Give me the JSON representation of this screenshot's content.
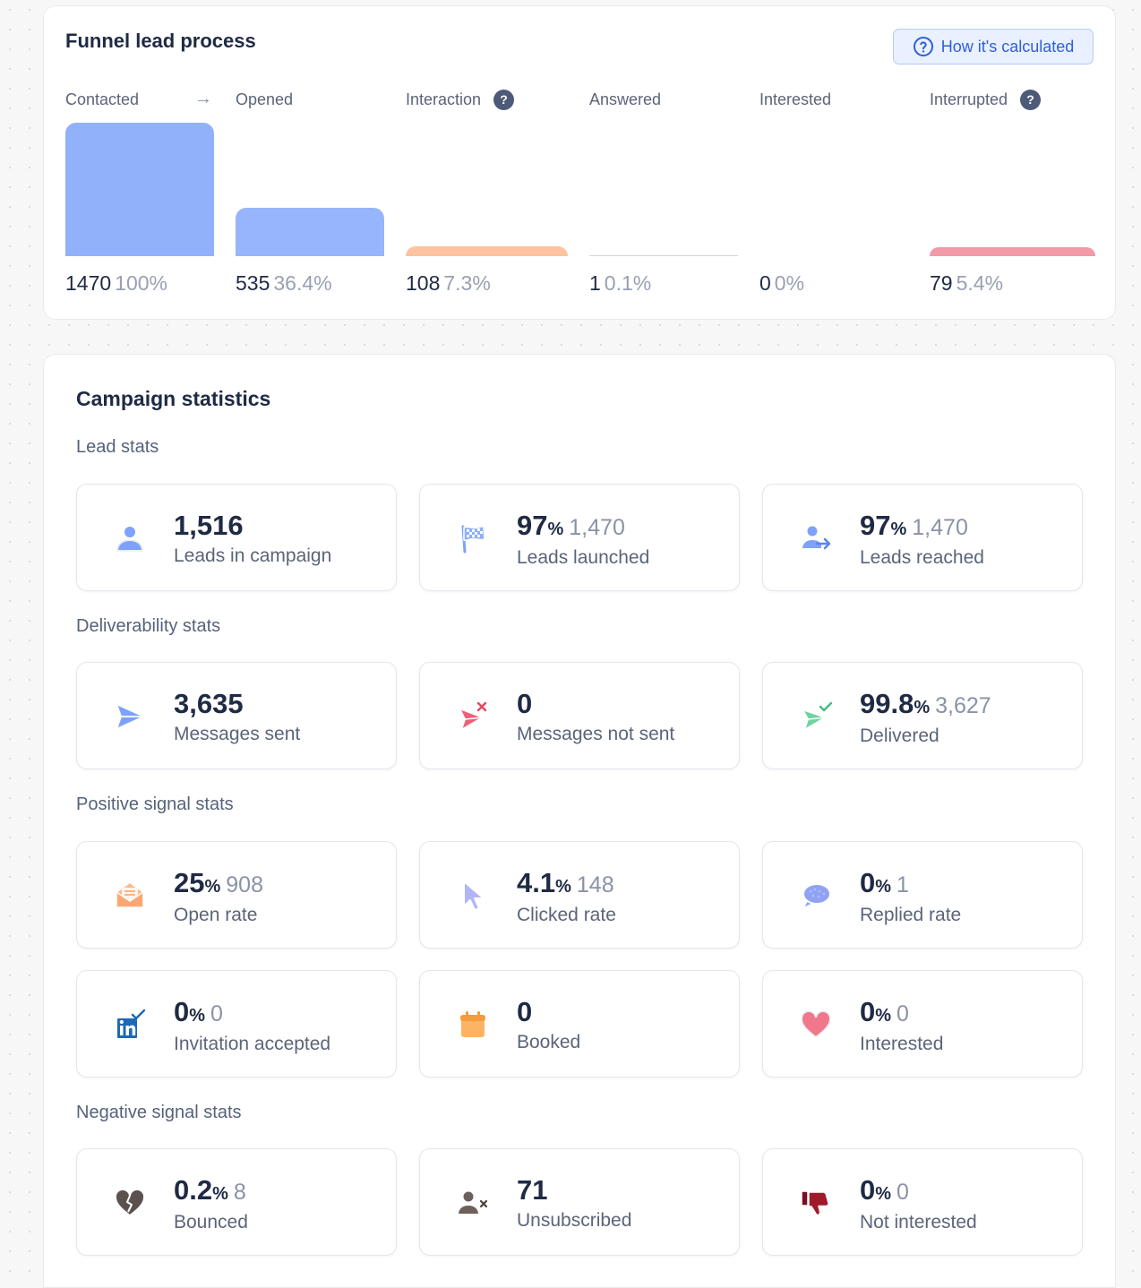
{
  "funnel": {
    "title": "Funnel lead process",
    "how_button": "How it's calculated",
    "stages": [
      {
        "label": "Contacted",
        "count": "1470",
        "percent": "100%",
        "fraction": 1.0,
        "color": "#92b1fb",
        "help": false
      },
      {
        "label": "Opened",
        "count": "535",
        "percent": "36.4%",
        "fraction": 0.364,
        "color": "#96b5fb",
        "help": false
      },
      {
        "label": "Interaction",
        "count": "108",
        "percent": "7.3%",
        "fraction": 0.073,
        "color": "#fcc3a0",
        "help": true
      },
      {
        "label": "Answered",
        "count": "1",
        "percent": "0.1%",
        "fraction": 0.001,
        "color": "#d0d5e2",
        "help": false
      },
      {
        "label": "Interested",
        "count": "0",
        "percent": "0%",
        "fraction": 0.0,
        "color": "#d0d5e2",
        "help": false
      },
      {
        "label": "Interrupted",
        "count": "79",
        "percent": "5.4%",
        "fraction": 0.054,
        "color": "#f29aa8",
        "help": true
      }
    ]
  },
  "campaign": {
    "title": "Campaign statistics",
    "sections": {
      "lead": "Lead stats",
      "deliverability": "Deliverability stats",
      "positive": "Positive signal stats",
      "negative": "Negative signal stats"
    },
    "stats": {
      "leads_in_campaign": {
        "value": "1,516",
        "label": "Leads in campaign",
        "icon": "person-icon"
      },
      "leads_launched": {
        "value": "97",
        "pct": "%",
        "sub": "1,470",
        "label": "Leads launched",
        "icon": "flag-icon"
      },
      "leads_reached": {
        "value": "97",
        "pct": "%",
        "sub": "1,470",
        "label": "Leads reached",
        "icon": "person-arrow-icon"
      },
      "messages_sent": {
        "value": "3,635",
        "label": "Messages sent",
        "icon": "paper-plane-icon"
      },
      "messages_not_sent": {
        "value": "0",
        "label": "Messages not sent",
        "icon": "plane-failed-icon"
      },
      "delivered": {
        "value": "99.8",
        "pct": "%",
        "sub": "3,627",
        "label": "Delivered",
        "icon": "plane-check-icon"
      },
      "open_rate": {
        "value": "25",
        "pct": "%",
        "sub": "908",
        "label": "Open rate",
        "icon": "open-envelope-icon"
      },
      "clicked_rate": {
        "value": "4.1",
        "pct": "%",
        "sub": "148",
        "label": "Clicked rate",
        "icon": "cursor-icon"
      },
      "replied_rate": {
        "value": "0",
        "pct": "%",
        "sub": "1",
        "label": "Replied rate",
        "icon": "speech-bubble-icon"
      },
      "invitation_accepted": {
        "value": "0",
        "pct": "%",
        "sub": "0",
        "label": "Invitation accepted",
        "icon": "linkedin-check-icon"
      },
      "booked": {
        "value": "0",
        "label": "Booked",
        "icon": "calendar-icon"
      },
      "interested": {
        "value": "0",
        "pct": "%",
        "sub": "0",
        "label": "Interested",
        "icon": "heart-icon"
      },
      "bounced": {
        "value": "0.2",
        "pct": "%",
        "sub": "8",
        "label": "Bounced",
        "icon": "broken-heart-icon"
      },
      "unsubscribed": {
        "value": "71",
        "label": "Unsubscribed",
        "icon": "person-remove-icon"
      },
      "not_interested": {
        "value": "0",
        "pct": "%",
        "sub": "0",
        "label": "Not interested",
        "icon": "thumbs-down-icon"
      }
    }
  }
}
